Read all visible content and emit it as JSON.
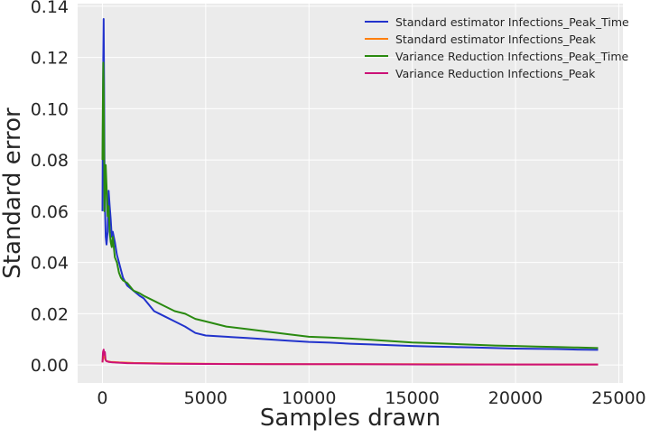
{
  "chart_data": {
    "type": "line",
    "title": "",
    "xlabel": "Samples drawn",
    "ylabel": "Standard error",
    "xlim": [
      -1200,
      25200
    ],
    "ylim": [
      -0.007,
      0.141
    ],
    "xticks": [
      0,
      5000,
      10000,
      15000,
      20000,
      25000
    ],
    "yticks": [
      0.0,
      0.02,
      0.04,
      0.06,
      0.08,
      0.1,
      0.12,
      0.14
    ],
    "xtick_labels": [
      "0",
      "5000",
      "10000",
      "15000",
      "20000",
      "25000"
    ],
    "ytick_labels": [
      "0.00",
      "0.02",
      "0.04",
      "0.06",
      "0.08",
      "0.10",
      "0.12",
      "0.14"
    ],
    "grid": true,
    "legend_position": "top-right",
    "colors": {
      "background": "#ebebeb",
      "grid": "#ffffff",
      "text": "#262626"
    },
    "series": [
      {
        "name": "Standard estimator Infections_Peak_Time",
        "color": "#2233cc",
        "points": [
          [
            0,
            0.06
          ],
          [
            20,
            0.09
          ],
          [
            40,
            0.12
          ],
          [
            60,
            0.135
          ],
          [
            80,
            0.11
          ],
          [
            100,
            0.08
          ],
          [
            130,
            0.06
          ],
          [
            160,
            0.05
          ],
          [
            200,
            0.047
          ],
          [
            250,
            0.052
          ],
          [
            300,
            0.068
          ],
          [
            350,
            0.062
          ],
          [
            400,
            0.057
          ],
          [
            450,
            0.05
          ],
          [
            500,
            0.052
          ],
          [
            600,
            0.048
          ],
          [
            700,
            0.043
          ],
          [
            800,
            0.04
          ],
          [
            900,
            0.037
          ],
          [
            1000,
            0.034
          ],
          [
            1200,
            0.031
          ],
          [
            1500,
            0.029
          ],
          [
            1800,
            0.027
          ],
          [
            2000,
            0.026
          ],
          [
            2500,
            0.021
          ],
          [
            3000,
            0.019
          ],
          [
            3500,
            0.017
          ],
          [
            4000,
            0.015
          ],
          [
            4500,
            0.0125
          ],
          [
            5000,
            0.0115
          ],
          [
            6000,
            0.011
          ],
          [
            7000,
            0.0105
          ],
          [
            8000,
            0.01
          ],
          [
            9000,
            0.0095
          ],
          [
            10000,
            0.009
          ],
          [
            11000,
            0.0087
          ],
          [
            12000,
            0.0083
          ],
          [
            13000,
            0.008
          ],
          [
            14000,
            0.0077
          ],
          [
            15000,
            0.0074
          ],
          [
            16000,
            0.0072
          ],
          [
            17000,
            0.007
          ],
          [
            18000,
            0.0068
          ],
          [
            19000,
            0.0066
          ],
          [
            20000,
            0.0064
          ],
          [
            21000,
            0.0063
          ],
          [
            22000,
            0.0062
          ],
          [
            23000,
            0.006
          ],
          [
            24000,
            0.0059
          ]
        ]
      },
      {
        "name": "Standard estimator Infections_Peak",
        "color": "#ff7f0e",
        "points": [
          [
            0,
            0.001
          ],
          [
            50,
            0.004
          ],
          [
            100,
            0.003
          ],
          [
            150,
            0.002
          ],
          [
            200,
            0.0015
          ],
          [
            400,
            0.0012
          ],
          [
            800,
            0.001
          ],
          [
            1500,
            0.0008
          ],
          [
            3000,
            0.0006
          ],
          [
            6000,
            0.0004
          ],
          [
            10000,
            0.0003
          ],
          [
            15000,
            0.0003
          ],
          [
            20000,
            0.0002
          ],
          [
            24000,
            0.0002
          ]
        ]
      },
      {
        "name": "Variance Reduction Infections_Peak_Time",
        "color": "#2a8a10",
        "points": [
          [
            0,
            0.08
          ],
          [
            20,
            0.1
          ],
          [
            40,
            0.118
          ],
          [
            60,
            0.11
          ],
          [
            80,
            0.085
          ],
          [
            100,
            0.06
          ],
          [
            130,
            0.068
          ],
          [
            160,
            0.078
          ],
          [
            200,
            0.07
          ],
          [
            250,
            0.058
          ],
          [
            300,
            0.062
          ],
          [
            350,
            0.052
          ],
          [
            400,
            0.048
          ],
          [
            450,
            0.046
          ],
          [
            500,
            0.05
          ],
          [
            600,
            0.042
          ],
          [
            700,
            0.04
          ],
          [
            800,
            0.036
          ],
          [
            900,
            0.034
          ],
          [
            1000,
            0.033
          ],
          [
            1200,
            0.032
          ],
          [
            1500,
            0.029
          ],
          [
            1800,
            0.028
          ],
          [
            2000,
            0.027
          ],
          [
            2500,
            0.025
          ],
          [
            3000,
            0.023
          ],
          [
            3500,
            0.021
          ],
          [
            4000,
            0.02
          ],
          [
            4500,
            0.018
          ],
          [
            5000,
            0.017
          ],
          [
            6000,
            0.015
          ],
          [
            7000,
            0.014
          ],
          [
            8000,
            0.013
          ],
          [
            9000,
            0.012
          ],
          [
            10000,
            0.011
          ],
          [
            11000,
            0.0107
          ],
          [
            12000,
            0.0103
          ],
          [
            13000,
            0.0098
          ],
          [
            14000,
            0.0093
          ],
          [
            15000,
            0.0088
          ],
          [
            16000,
            0.0085
          ],
          [
            17000,
            0.0082
          ],
          [
            18000,
            0.0079
          ],
          [
            19000,
            0.0076
          ],
          [
            20000,
            0.0074
          ],
          [
            21000,
            0.0072
          ],
          [
            22000,
            0.007
          ],
          [
            23000,
            0.0068
          ],
          [
            24000,
            0.0066
          ]
        ]
      },
      {
        "name": "Variance Reduction Infections_Peak",
        "color": "#cc1177",
        "points": [
          [
            0,
            0.001
          ],
          [
            30,
            0.005
          ],
          [
            60,
            0.006
          ],
          [
            90,
            0.004
          ],
          [
            120,
            0.005
          ],
          [
            150,
            0.002
          ],
          [
            200,
            0.0015
          ],
          [
            300,
            0.0012
          ],
          [
            500,
            0.001
          ],
          [
            800,
            0.0009
          ],
          [
            1200,
            0.0007
          ],
          [
            2000,
            0.0006
          ],
          [
            3000,
            0.0005
          ],
          [
            5000,
            0.0004
          ],
          [
            8000,
            0.0003
          ],
          [
            12000,
            0.0003
          ],
          [
            16000,
            0.0002
          ],
          [
            20000,
            0.0002
          ],
          [
            24000,
            0.0002
          ]
        ]
      }
    ]
  }
}
